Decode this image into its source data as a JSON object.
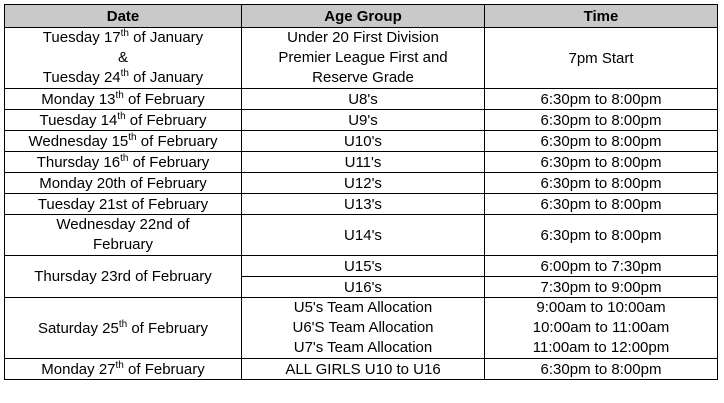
{
  "headers": {
    "date": "Date",
    "age_group": "Age Group",
    "time": "Time"
  },
  "rows": {
    "r1": {
      "date_line1_pre": "Tuesday 17",
      "date_line1_sup": "th",
      "date_line1_post": " of January",
      "date_amp": "&",
      "date_line2_pre": "Tuesday 24",
      "date_line2_sup": "th",
      "date_line2_post": " of January",
      "age_line1": "Under 20 First Division",
      "age_line2": "Premier League First and",
      "age_line3": "Reserve Grade",
      "time": "7pm Start"
    },
    "r2": {
      "date_pre": "Monday 13",
      "date_sup": "th",
      "date_post": " of February",
      "age": "U8's",
      "time": "6:30pm to 8:00pm"
    },
    "r3": {
      "date_pre": "Tuesday 14",
      "date_sup": "th",
      "date_post": " of February",
      "age": "U9's",
      "time": "6:30pm to 8:00pm"
    },
    "r4": {
      "date_pre": "Wednesday 15",
      "date_sup": "th",
      "date_post": " of February",
      "age": "U10's",
      "time": "6:30pm to 8:00pm"
    },
    "r5": {
      "date_pre": "Thursday 16",
      "date_sup": "th",
      "date_post": " of February",
      "age": "U11's",
      "time": "6:30pm to 8:00pm"
    },
    "r6": {
      "date": "Monday 20th of February",
      "age": "U12's",
      "time": "6:30pm to 8:00pm"
    },
    "r7": {
      "date": "Tuesday 21st of February",
      "age": "U13's",
      "time": "6:30pm to 8:00pm"
    },
    "r8": {
      "date_line1": "Wednesday 22nd of",
      "date_line2": "February",
      "age": "U14's",
      "time": "6:30pm to 8:00pm"
    },
    "r9": {
      "date": "Thursday 23rd of February",
      "age_a": "U15's",
      "time_a": "6:00pm to 7:30pm",
      "age_b": "U16's",
      "time_b": "7:30pm to 9:00pm"
    },
    "r10": {
      "date_pre": "Saturday 25",
      "date_sup": "th",
      "date_post": " of February",
      "age_line1": "U5's Team Allocation",
      "age_line2": "U6'S Team Allocation",
      "age_line3": "U7's Team Allocation",
      "time_line1": "9:00am to 10:00am",
      "time_line2": "10:00am to 11:00am",
      "time_line3": "11:00am to 12:00pm"
    },
    "r11": {
      "date_pre": "Monday 27",
      "date_sup": "th",
      "date_post": " of February",
      "age": "ALL GIRLS U10 to U16",
      "time": "6:30pm to 8:00pm"
    }
  }
}
